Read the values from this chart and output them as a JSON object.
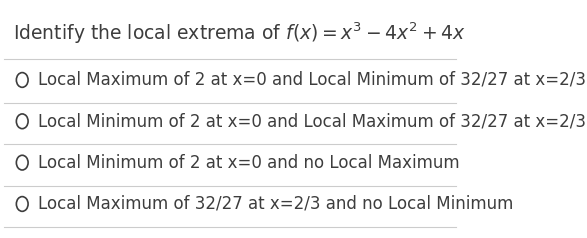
{
  "title": "Identify the local extrema of $f(x) = x^3 - 4x^2 + 4x$",
  "title_color": "#3d3d3d",
  "title_fontsize": 13.5,
  "background_color": "#ffffff",
  "options": [
    "Local Maximum of 2 at x=0 and Local Minimum of 32/27 at x=2/3",
    "Local Minimum of 2 at x=0 and Local Maximum of 32/27 at x=2/3",
    "Local Minimum of 2 at x=0 and no Local Maximum",
    "Local Maximum of 32/27 at x=2/3 and no Local Minimum"
  ],
  "option_color": "#3d3d3d",
  "option_fontsize": 12,
  "circle_color": "#3d3d3d",
  "line_color": "#cccccc",
  "line_width": 0.8
}
